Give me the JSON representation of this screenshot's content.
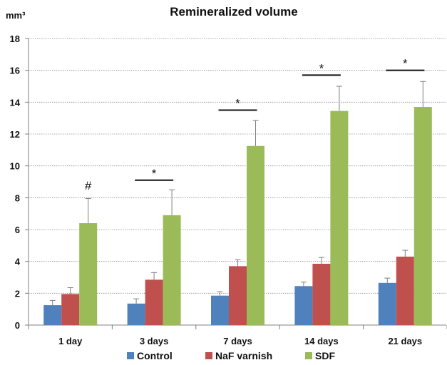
{
  "chart_data": {
    "type": "bar",
    "title": "Remineralized volume",
    "ylabel": "mm³",
    "xlabel": "",
    "ylim": [
      0,
      18
    ],
    "yticks": [
      0,
      2,
      4,
      6,
      8,
      10,
      12,
      14,
      16,
      18
    ],
    "grid": true,
    "legend_position": "bottom",
    "categories": [
      "1 day",
      "3 days",
      "7 days",
      "14 days",
      "21 days"
    ],
    "series": [
      {
        "name": "Control",
        "color": "#4f81bd",
        "values": [
          1.25,
          1.35,
          1.85,
          2.45,
          2.65
        ],
        "error": [
          0.3,
          0.3,
          0.25,
          0.25,
          0.3
        ]
      },
      {
        "name": "NaF varnish",
        "color": "#c0504d",
        "values": [
          1.95,
          2.85,
          3.7,
          3.85,
          4.3
        ],
        "error": [
          0.4,
          0.45,
          0.4,
          0.4,
          0.4
        ]
      },
      {
        "name": "SDF",
        "color": "#9bbb59",
        "values": [
          6.4,
          6.9,
          11.25,
          13.45,
          13.7
        ],
        "error": [
          1.55,
          1.6,
          1.6,
          1.55,
          1.6
        ]
      }
    ],
    "annotations": [
      {
        "category": "1 day",
        "symbol": "#",
        "y": 8.5,
        "line": false
      },
      {
        "category": "3 days",
        "symbol": "*",
        "y": 9.1,
        "line": true
      },
      {
        "category": "7 days",
        "symbol": "*",
        "y": 13.5,
        "line": true
      },
      {
        "category": "14 days",
        "symbol": "*",
        "y": 15.7,
        "line": true
      },
      {
        "category": "21 days",
        "symbol": "*",
        "y": 16.0,
        "line": true
      }
    ]
  }
}
